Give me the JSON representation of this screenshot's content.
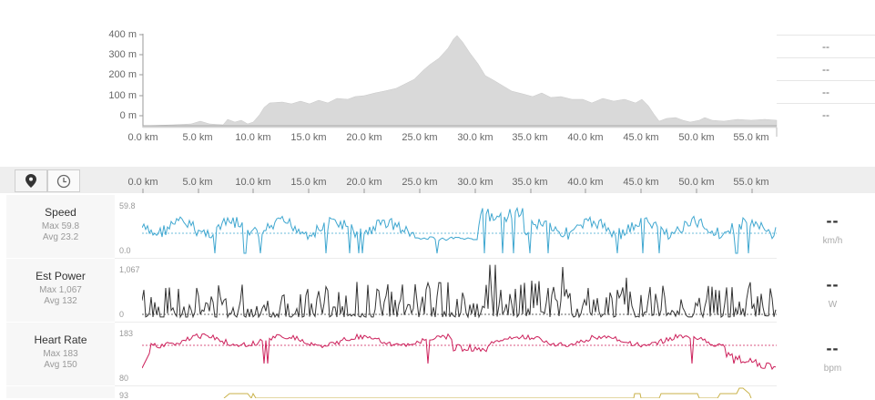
{
  "elevation": {
    "y_labels": [
      "400 m",
      "300 m",
      "200 m",
      "100 m",
      "0 m"
    ],
    "x_labels": [
      "0.0 km",
      "5.0 km",
      "10.0 km",
      "15.0 km",
      "20.0 km",
      "25.0 km",
      "30.0 km",
      "35.0 km",
      "40.0 km",
      "45.0 km",
      "50.0 km",
      "55.0 km"
    ],
    "side_values": [
      "--",
      "--",
      "--",
      "--"
    ],
    "fill_color": "#d9d9d9"
  },
  "toolbar": {
    "icons": [
      "map-pin-icon",
      "clock-icon"
    ],
    "x_labels": [
      "0.0 km",
      "5.0 km",
      "10.0 km",
      "15.0 km",
      "20.0 km",
      "25.0 km",
      "30.0 km",
      "35.0 km",
      "40.0 km",
      "45.0 km",
      "50.0 km",
      "55.0 km"
    ]
  },
  "streams": [
    {
      "name": "Speed",
      "max": "Max 59.8",
      "avg": "Avg 23.2",
      "scale_top": "59.8",
      "scale_bottom": "0.0",
      "value": "--",
      "unit": "km/h",
      "color": "#3fa7d0"
    },
    {
      "name": "Est Power",
      "max": "Max 1,067",
      "avg": "Avg 132",
      "scale_top": "1,067",
      "scale_bottom": "0",
      "value": "--",
      "unit": "W",
      "color": "#333333"
    },
    {
      "name": "Heart Rate",
      "max": "Max 183",
      "avg": "Avg 150",
      "scale_top": "183",
      "scale_bottom": "80",
      "value": "--",
      "unit": "bpm",
      "color": "#cc1f5a"
    }
  ],
  "partial_stream": {
    "scale_top": "93",
    "color": "#c9b24a"
  }
}
